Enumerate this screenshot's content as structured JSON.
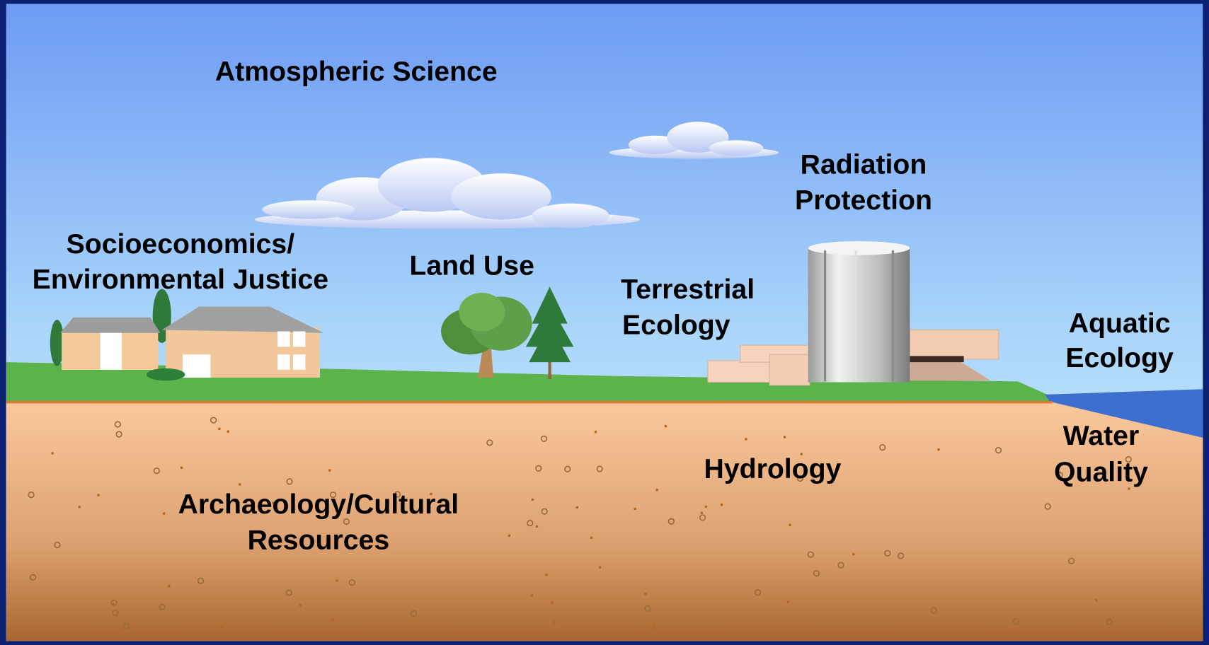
{
  "labels": [
    {
      "lines": [
        "Atmospheric Science"
      ]
    },
    {
      "lines": [
        "Radiation",
        "Protection"
      ]
    },
    {
      "lines": [
        "Socioeconomics/",
        "Environmental Justice"
      ]
    },
    {
      "lines": [
        "Land Use"
      ]
    },
    {
      "lines": [
        "Terrestrial",
        "Ecology"
      ]
    },
    {
      "lines": [
        "Aquatic",
        "Ecology"
      ]
    },
    {
      "lines": [
        "Water",
        "Quality"
      ]
    },
    {
      "lines": [
        "Hydrology"
      ]
    },
    {
      "lines": [
        "Archaeology/Cultural",
        "Resources"
      ]
    }
  ]
}
